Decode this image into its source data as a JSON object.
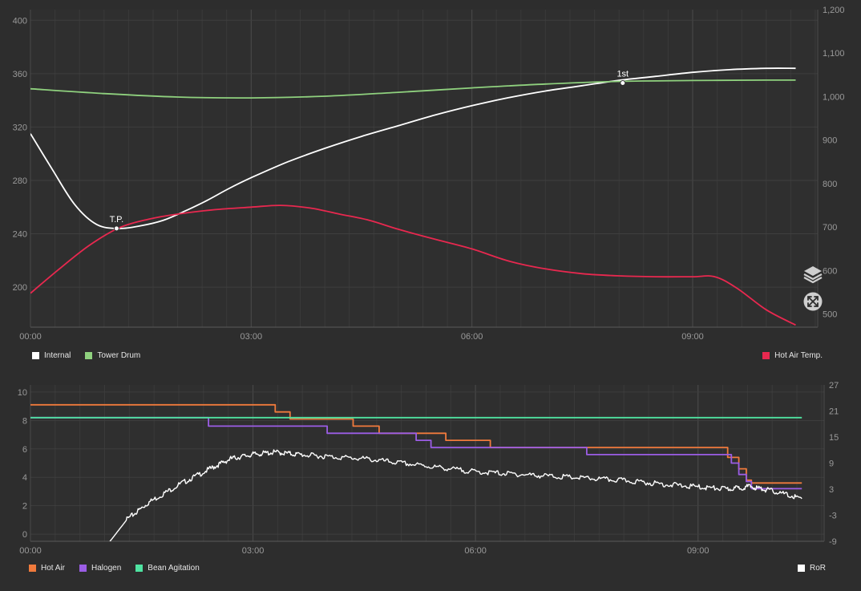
{
  "chart_data": [
    {
      "type": "line",
      "title": "",
      "x_unit": "minutes",
      "xlim": [
        0,
        10.7
      ],
      "x_ticks": [
        "00:00",
        "03:00",
        "06:00",
        "09:00"
      ],
      "y_left_ticks": [
        "400",
        "360",
        "320",
        "280",
        "240",
        "200"
      ],
      "y_left_lim": [
        170,
        408
      ],
      "y_right_ticks": [
        "1,200",
        "1,100",
        "1,000",
        "900",
        "800",
        "700",
        "600",
        "500"
      ],
      "y_right_lim": [
        470,
        1200
      ],
      "series": [
        {
          "name": "Internal",
          "axis": "left",
          "color": "#ffffff",
          "points": [
            [
              0,
              315
            ],
            [
              0.3,
              288
            ],
            [
              0.6,
              262
            ],
            [
              0.9,
              247
            ],
            [
              1.2,
              244
            ],
            [
              1.5,
              246
            ],
            [
              1.8,
              250
            ],
            [
              2.1,
              257
            ],
            [
              2.4,
              265
            ],
            [
              2.7,
              274
            ],
            [
              3.0,
              282
            ],
            [
              3.5,
              294
            ],
            [
              4.0,
              304
            ],
            [
              4.5,
              313
            ],
            [
              5.0,
              321
            ],
            [
              5.5,
              329
            ],
            [
              6.0,
              336
            ],
            [
              6.5,
              342
            ],
            [
              7.0,
              347
            ],
            [
              7.5,
              351
            ],
            [
              8.0,
              355
            ],
            [
              8.5,
              358
            ],
            [
              9.0,
              361
            ],
            [
              9.5,
              363
            ],
            [
              10.0,
              364
            ],
            [
              10.4,
              364
            ]
          ]
        },
        {
          "name": "Tower Drum",
          "axis": "right",
          "color": "#8fd17e",
          "points": [
            [
              0,
              1018
            ],
            [
              1.0,
              1007
            ],
            [
              2.0,
              999
            ],
            [
              3.0,
              997
            ],
            [
              4.0,
              1001
            ],
            [
              5.0,
              1010
            ],
            [
              6.0,
              1020
            ],
            [
              7.0,
              1029
            ],
            [
              8.0,
              1035
            ],
            [
              9.0,
              1037
            ],
            [
              10.0,
              1038
            ],
            [
              10.4,
              1038
            ]
          ]
        },
        {
          "name": "Hot Air Temp.",
          "axis": "right",
          "color": "#e8284f",
          "points": [
            [
              0,
              548
            ],
            [
              0.4,
              605
            ],
            [
              0.8,
              658
            ],
            [
              1.2,
              698
            ],
            [
              1.6,
              718
            ],
            [
              2.0,
              730
            ],
            [
              2.5,
              740
            ],
            [
              3.0,
              746
            ],
            [
              3.4,
              750
            ],
            [
              3.8,
              744
            ],
            [
              4.2,
              730
            ],
            [
              4.6,
              716
            ],
            [
              5.0,
              695
            ],
            [
              5.5,
              672
            ],
            [
              6.0,
              650
            ],
            [
              6.5,
              622
            ],
            [
              7.0,
              604
            ],
            [
              7.5,
              593
            ],
            [
              8.0,
              588
            ],
            [
              8.5,
              586
            ],
            [
              9.0,
              586
            ],
            [
              9.3,
              586
            ],
            [
              9.6,
              560
            ],
            [
              10.0,
              510
            ],
            [
              10.4,
              475
            ]
          ]
        }
      ],
      "annotations": [
        {
          "label": "T.P.",
          "x": 1.17,
          "y": 244,
          "axis": "left"
        },
        {
          "label": "1st",
          "x": 8.05,
          "y": 353,
          "axis": "left"
        }
      ],
      "legend_left": [
        {
          "label": "Internal",
          "color": "#ffffff"
        },
        {
          "label": "Tower Drum",
          "color": "#8fd17e"
        }
      ],
      "legend_right": [
        {
          "label": "Hot Air Temp.",
          "color": "#e8284f"
        }
      ]
    },
    {
      "type": "line",
      "title": "",
      "x_unit": "minutes",
      "xlim": [
        0,
        10.7
      ],
      "x_ticks": [
        "00:00",
        "03:00",
        "06:00",
        "09:00"
      ],
      "y_left_ticks": [
        "10",
        "8",
        "6",
        "4",
        "2",
        "0"
      ],
      "y_left_lim": [
        -0.5,
        10.5
      ],
      "y_right_ticks": [
        "27",
        "21",
        "15",
        "9",
        "3",
        "-3",
        "-9"
      ],
      "y_right_lim": [
        -9,
        27
      ],
      "series": [
        {
          "name": "Hot Air",
          "axis": "left",
          "color": "#f07a3c",
          "step": true,
          "points": [
            [
              0,
              9.1
            ],
            [
              3.3,
              9.1
            ],
            [
              3.3,
              8.6
            ],
            [
              3.5,
              8.6
            ],
            [
              3.5,
              8.1
            ],
            [
              4.35,
              8.1
            ],
            [
              4.35,
              7.6
            ],
            [
              4.7,
              7.6
            ],
            [
              4.7,
              7.1
            ],
            [
              5.6,
              7.1
            ],
            [
              5.6,
              6.6
            ],
            [
              6.2,
              6.6
            ],
            [
              6.2,
              6.1
            ],
            [
              9.4,
              6.1
            ],
            [
              9.4,
              5.4
            ],
            [
              9.55,
              5.4
            ],
            [
              9.55,
              4.6
            ],
            [
              9.65,
              4.6
            ],
            [
              9.65,
              3.8
            ],
            [
              9.72,
              3.8
            ],
            [
              9.72,
              3.6
            ],
            [
              10.4,
              3.6
            ]
          ]
        },
        {
          "name": "Halogen",
          "axis": "left",
          "color": "#9b5de5",
          "step": true,
          "points": [
            [
              0,
              8.2
            ],
            [
              2.4,
              8.2
            ],
            [
              2.4,
              7.6
            ],
            [
              4.0,
              7.6
            ],
            [
              4.0,
              7.1
            ],
            [
              5.2,
              7.1
            ],
            [
              5.2,
              6.6
            ],
            [
              5.4,
              6.6
            ],
            [
              5.4,
              6.1
            ],
            [
              7.5,
              6.1
            ],
            [
              7.5,
              5.6
            ],
            [
              9.45,
              5.6
            ],
            [
              9.45,
              5.0
            ],
            [
              9.55,
              5.0
            ],
            [
              9.55,
              4.2
            ],
            [
              9.65,
              4.2
            ],
            [
              9.65,
              3.7
            ],
            [
              9.72,
              3.7
            ],
            [
              9.72,
              3.2
            ],
            [
              10.4,
              3.2
            ]
          ]
        },
        {
          "name": "Bean Agitation",
          "axis": "left",
          "color": "#4fe3a1",
          "step": true,
          "points": [
            [
              0,
              8.2
            ],
            [
              10.4,
              8.2
            ]
          ]
        },
        {
          "name": "RoR",
          "axis": "right",
          "color": "#ffffff",
          "noise": true,
          "points": [
            [
              1.05,
              -9.5
            ],
            [
              1.3,
              -4
            ],
            [
              1.6,
              0
            ],
            [
              2.0,
              4
            ],
            [
              2.4,
              7.5
            ],
            [
              2.7,
              10
            ],
            [
              3.0,
              11
            ],
            [
              3.3,
              11.5
            ],
            [
              3.6,
              11
            ],
            [
              4.0,
              10.5
            ],
            [
              4.5,
              10
            ],
            [
              5.0,
              9
            ],
            [
              5.5,
              8
            ],
            [
              6.0,
              7
            ],
            [
              6.5,
              6.5
            ],
            [
              7.0,
              6
            ],
            [
              7.5,
              5.5
            ],
            [
              8.0,
              5
            ],
            [
              8.5,
              4.2
            ],
            [
              9.0,
              3.5
            ],
            [
              9.4,
              3
            ],
            [
              9.7,
              3.6
            ],
            [
              10.0,
              2.6
            ],
            [
              10.4,
              0.8
            ]
          ]
        }
      ],
      "legend_left": [
        {
          "label": "Hot Air",
          "color": "#f07a3c"
        },
        {
          "label": "Halogen",
          "color": "#9b5de5"
        },
        {
          "label": "Bean Agitation",
          "color": "#4fe3a1"
        }
      ],
      "legend_right": [
        {
          "label": "RoR",
          "color": "#ffffff"
        }
      ]
    }
  ],
  "icons": {
    "layers": "layers-icon",
    "fullscreen": "expand-icon"
  }
}
